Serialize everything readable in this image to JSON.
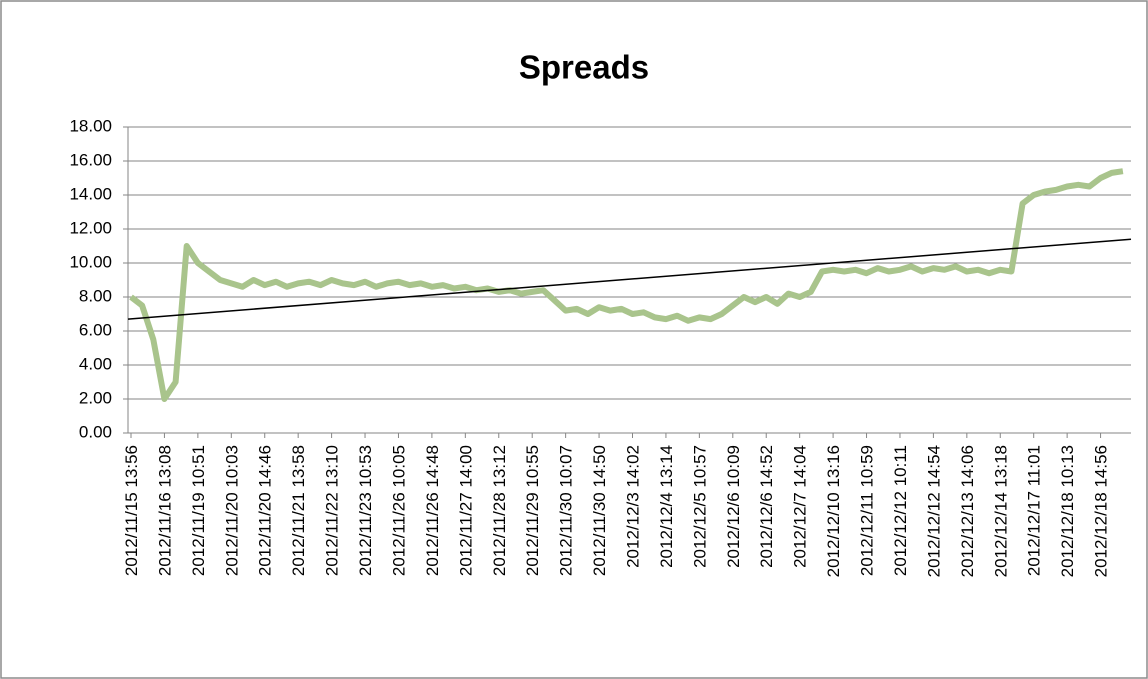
{
  "chart_data": {
    "type": "line",
    "title": "Spreads",
    "categories": [
      "2012/11/15 13:56",
      null,
      null,
      "2012/11/16 13:08",
      null,
      null,
      "2012/11/19 10:51",
      null,
      null,
      "2012/11/20 10:03",
      null,
      null,
      "2012/11/20 14:46",
      null,
      null,
      "2012/11/21 13:58",
      null,
      null,
      "2012/11/22 13:10",
      null,
      null,
      "2012/11/23 10:53",
      null,
      null,
      "2012/11/26 10:05",
      null,
      null,
      "2012/11/26 14:48",
      null,
      null,
      "2012/11/27 14:00",
      null,
      null,
      "2012/11/28 13:12",
      null,
      null,
      "2012/11/29 10:55",
      null,
      null,
      "2012/11/30 10:07",
      null,
      null,
      "2012/11/30 14:50",
      null,
      null,
      "2012/12/3 14:02",
      null,
      null,
      "2012/12/4 13:14",
      null,
      null,
      "2012/12/5 10:57",
      null,
      null,
      "2012/12/6 10:09",
      null,
      null,
      "2012/12/6 14:52",
      null,
      null,
      "2012/12/7 14:04",
      null,
      null,
      "2012/12/10 13:16",
      null,
      null,
      "2012/12/11 10:59",
      null,
      null,
      "2012/12/12 10:11",
      null,
      null,
      "2012/12/12 14:54",
      null,
      null,
      "2012/12/13 14:06",
      null,
      null,
      "2012/12/14 13:18",
      null,
      null,
      "2012/12/17 11:01",
      null,
      null,
      "2012/12/18 10:13",
      null,
      null,
      "2012/12/18 14:56",
      null,
      null
    ],
    "values": [
      8.0,
      7.5,
      5.5,
      2.0,
      3.0,
      11.0,
      10.0,
      9.5,
      9.0,
      8.8,
      8.6,
      9.0,
      8.7,
      8.9,
      8.6,
      8.8,
      8.9,
      8.7,
      9.0,
      8.8,
      8.7,
      8.9,
      8.6,
      8.8,
      8.9,
      8.7,
      8.8,
      8.6,
      8.7,
      8.5,
      8.6,
      8.4,
      8.5,
      8.3,
      8.4,
      8.2,
      8.3,
      8.4,
      7.8,
      7.2,
      7.3,
      7.0,
      7.4,
      7.2,
      7.3,
      7.0,
      7.1,
      6.8,
      6.7,
      6.9,
      6.6,
      6.8,
      6.7,
      7.0,
      7.5,
      8.0,
      7.7,
      8.0,
      7.6,
      8.2,
      8.0,
      8.3,
      9.5,
      9.6,
      9.5,
      9.6,
      9.4,
      9.7,
      9.5,
      9.6,
      9.8,
      9.5,
      9.7,
      9.6,
      9.8,
      9.5,
      9.6,
      9.4,
      9.6,
      9.5,
      13.5,
      14.0,
      14.2,
      14.3,
      14.5,
      14.6,
      14.5,
      15.0,
      15.3,
      15.4
    ],
    "color": "#a9c48c",
    "trendline": {
      "color": "#000000",
      "values": [
        6.7,
        11.4
      ]
    },
    "ylim": [
      0,
      18
    ],
    "yticks": [
      {
        "value": 0,
        "label": "0.00"
      },
      {
        "value": 2,
        "label": "2.00"
      },
      {
        "value": 4,
        "label": "4.00"
      },
      {
        "value": 6,
        "label": "6.00"
      },
      {
        "value": 8,
        "label": "8.00"
      },
      {
        "value": 10,
        "label": "10.00"
      },
      {
        "value": 12,
        "label": "12.00"
      },
      {
        "value": 14,
        "label": "14.00"
      },
      {
        "value": 16,
        "label": "16.00"
      },
      {
        "value": 18,
        "label": "18.00"
      }
    ],
    "grid": true
  }
}
